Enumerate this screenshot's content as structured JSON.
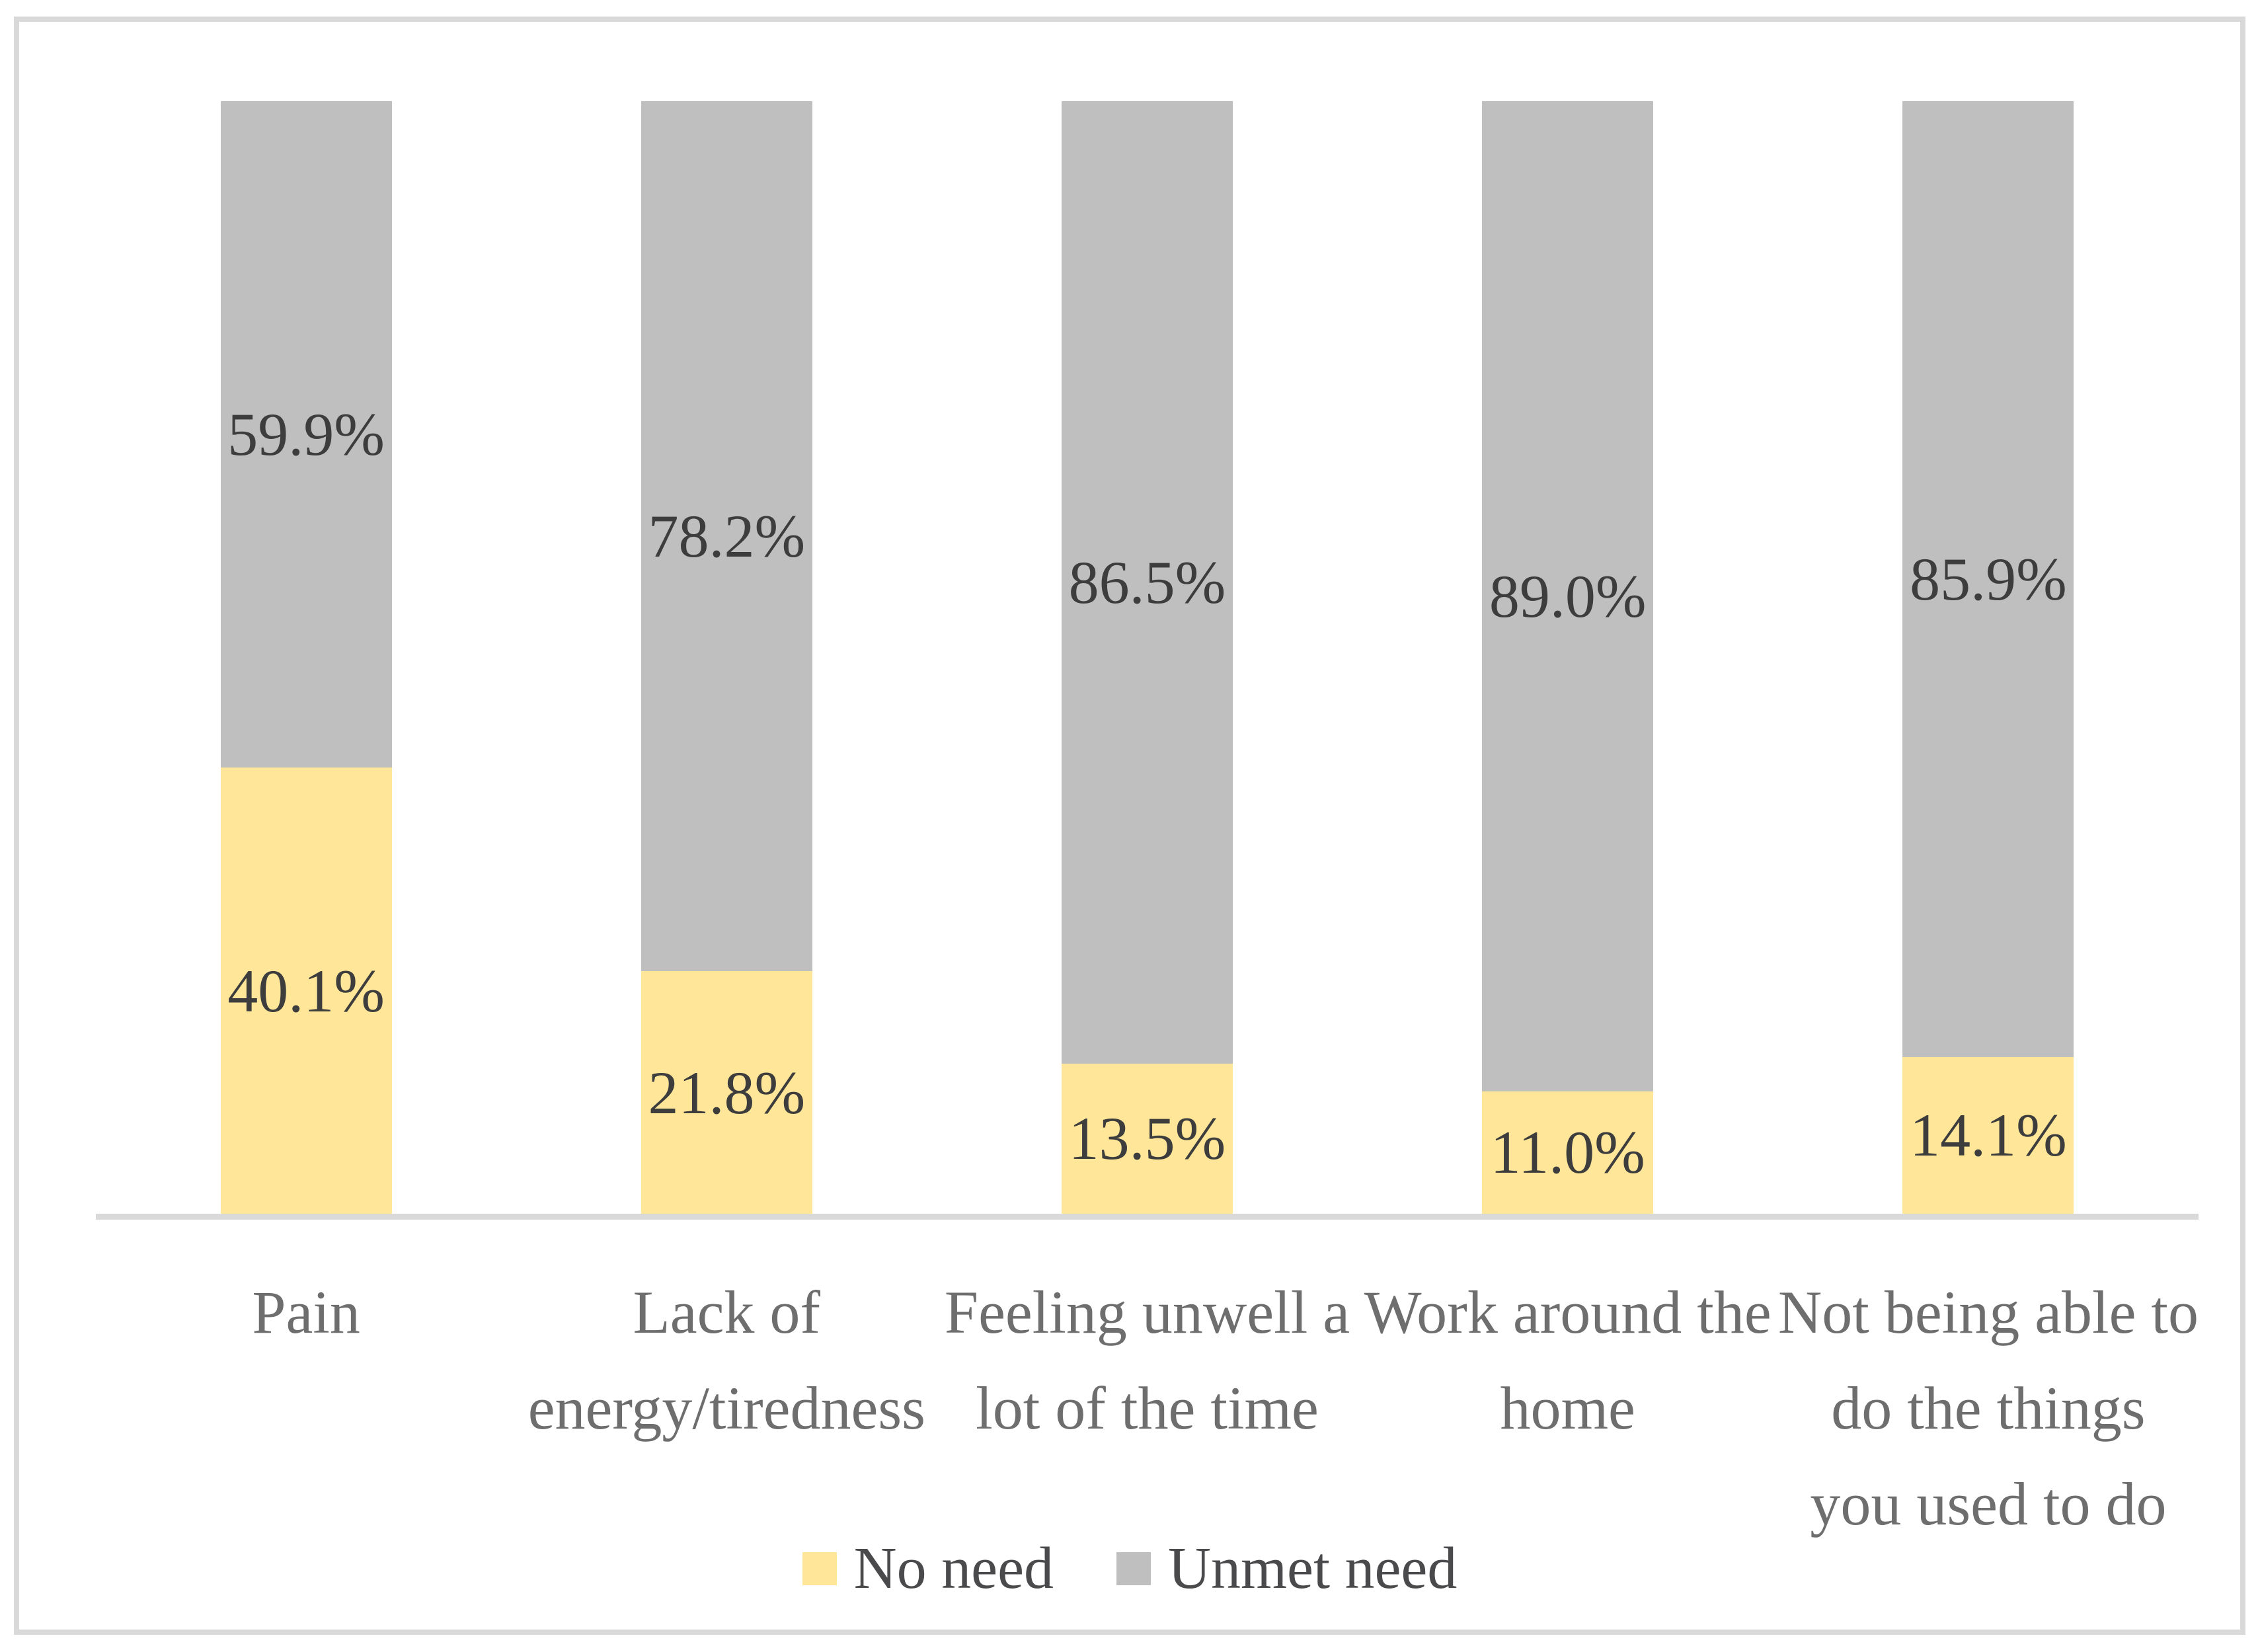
{
  "chart_data": {
    "type": "bar",
    "subtype": "stacked-100-percent",
    "orientation": "vertical",
    "title": "",
    "xlabel": "",
    "ylabel": "",
    "ylim": [
      0,
      100
    ],
    "grid": false,
    "legend_position": "bottom",
    "categories": [
      "Pain",
      "Lack of energy/tiredness",
      "Feeling unwell a lot of the time",
      "Work around the home",
      "Not being able to do the things you used to do"
    ],
    "category_label_lines": [
      [
        "Pain"
      ],
      [
        "Lack of",
        "energy/tiredness"
      ],
      [
        "Feeling unwell a",
        "lot of the time"
      ],
      [
        "Work around the",
        "home"
      ],
      [
        "Not being able to",
        "do the things",
        "you used to do"
      ]
    ],
    "series": [
      {
        "name": "No need",
        "color": "#FFE699",
        "values": [
          40.1,
          21.8,
          13.5,
          11.0,
          14.1
        ],
        "labels": [
          "40.1%",
          "21.8%",
          "13.5%",
          "11.0%",
          "14.1%"
        ]
      },
      {
        "name": "Unmet need",
        "color": "#BFBFBF",
        "values": [
          59.9,
          78.2,
          86.5,
          89.0,
          85.9
        ],
        "labels": [
          "59.9%",
          "78.2%",
          "86.5%",
          "89.0%",
          "85.9%"
        ]
      }
    ],
    "colors": {
      "frame": "#D9D9D9",
      "axis_line": "#D9D9D9",
      "data_label_text": "#3D3D3D",
      "category_text": "#6E6E6E",
      "legend_text": "#4A4A4C",
      "background": "#FFFFFF"
    }
  }
}
